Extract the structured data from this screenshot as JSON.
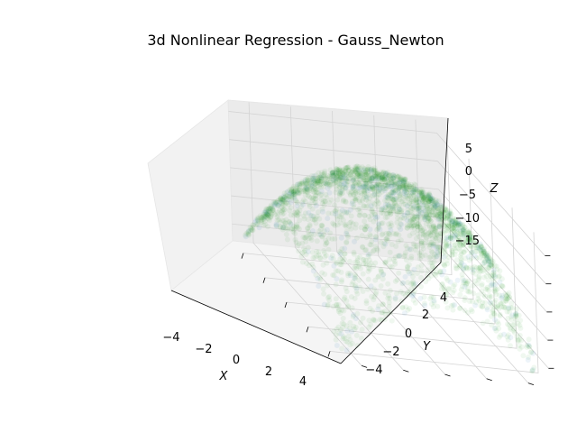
{
  "chart_data": {
    "type": "scatter",
    "projection": "3d",
    "title": "3d Nonlinear Regression - Gauss_Newton",
    "xlabel": "X",
    "ylabel": "Y",
    "zlabel": "Z",
    "xlim": [
      -5,
      5
    ],
    "ylim": [
      -5,
      5
    ],
    "zlim": [
      -18,
      7
    ],
    "xticks": [
      "−4",
      "−2",
      "0",
      "2",
      "4"
    ],
    "yticks": [
      "−4",
      "−2",
      "0",
      "2",
      "4"
    ],
    "zticks": [
      "5",
      "0",
      "−5",
      "−10",
      "−15"
    ],
    "grid": true,
    "series": [
      {
        "marker": "circle",
        "color": "#008000",
        "alpha": 0.06,
        "surface": "z = 5 - 0.5*x^2 - 0.5*y^2 (approx.)",
        "observed_color": "#1f77b4"
      }
    ]
  }
}
